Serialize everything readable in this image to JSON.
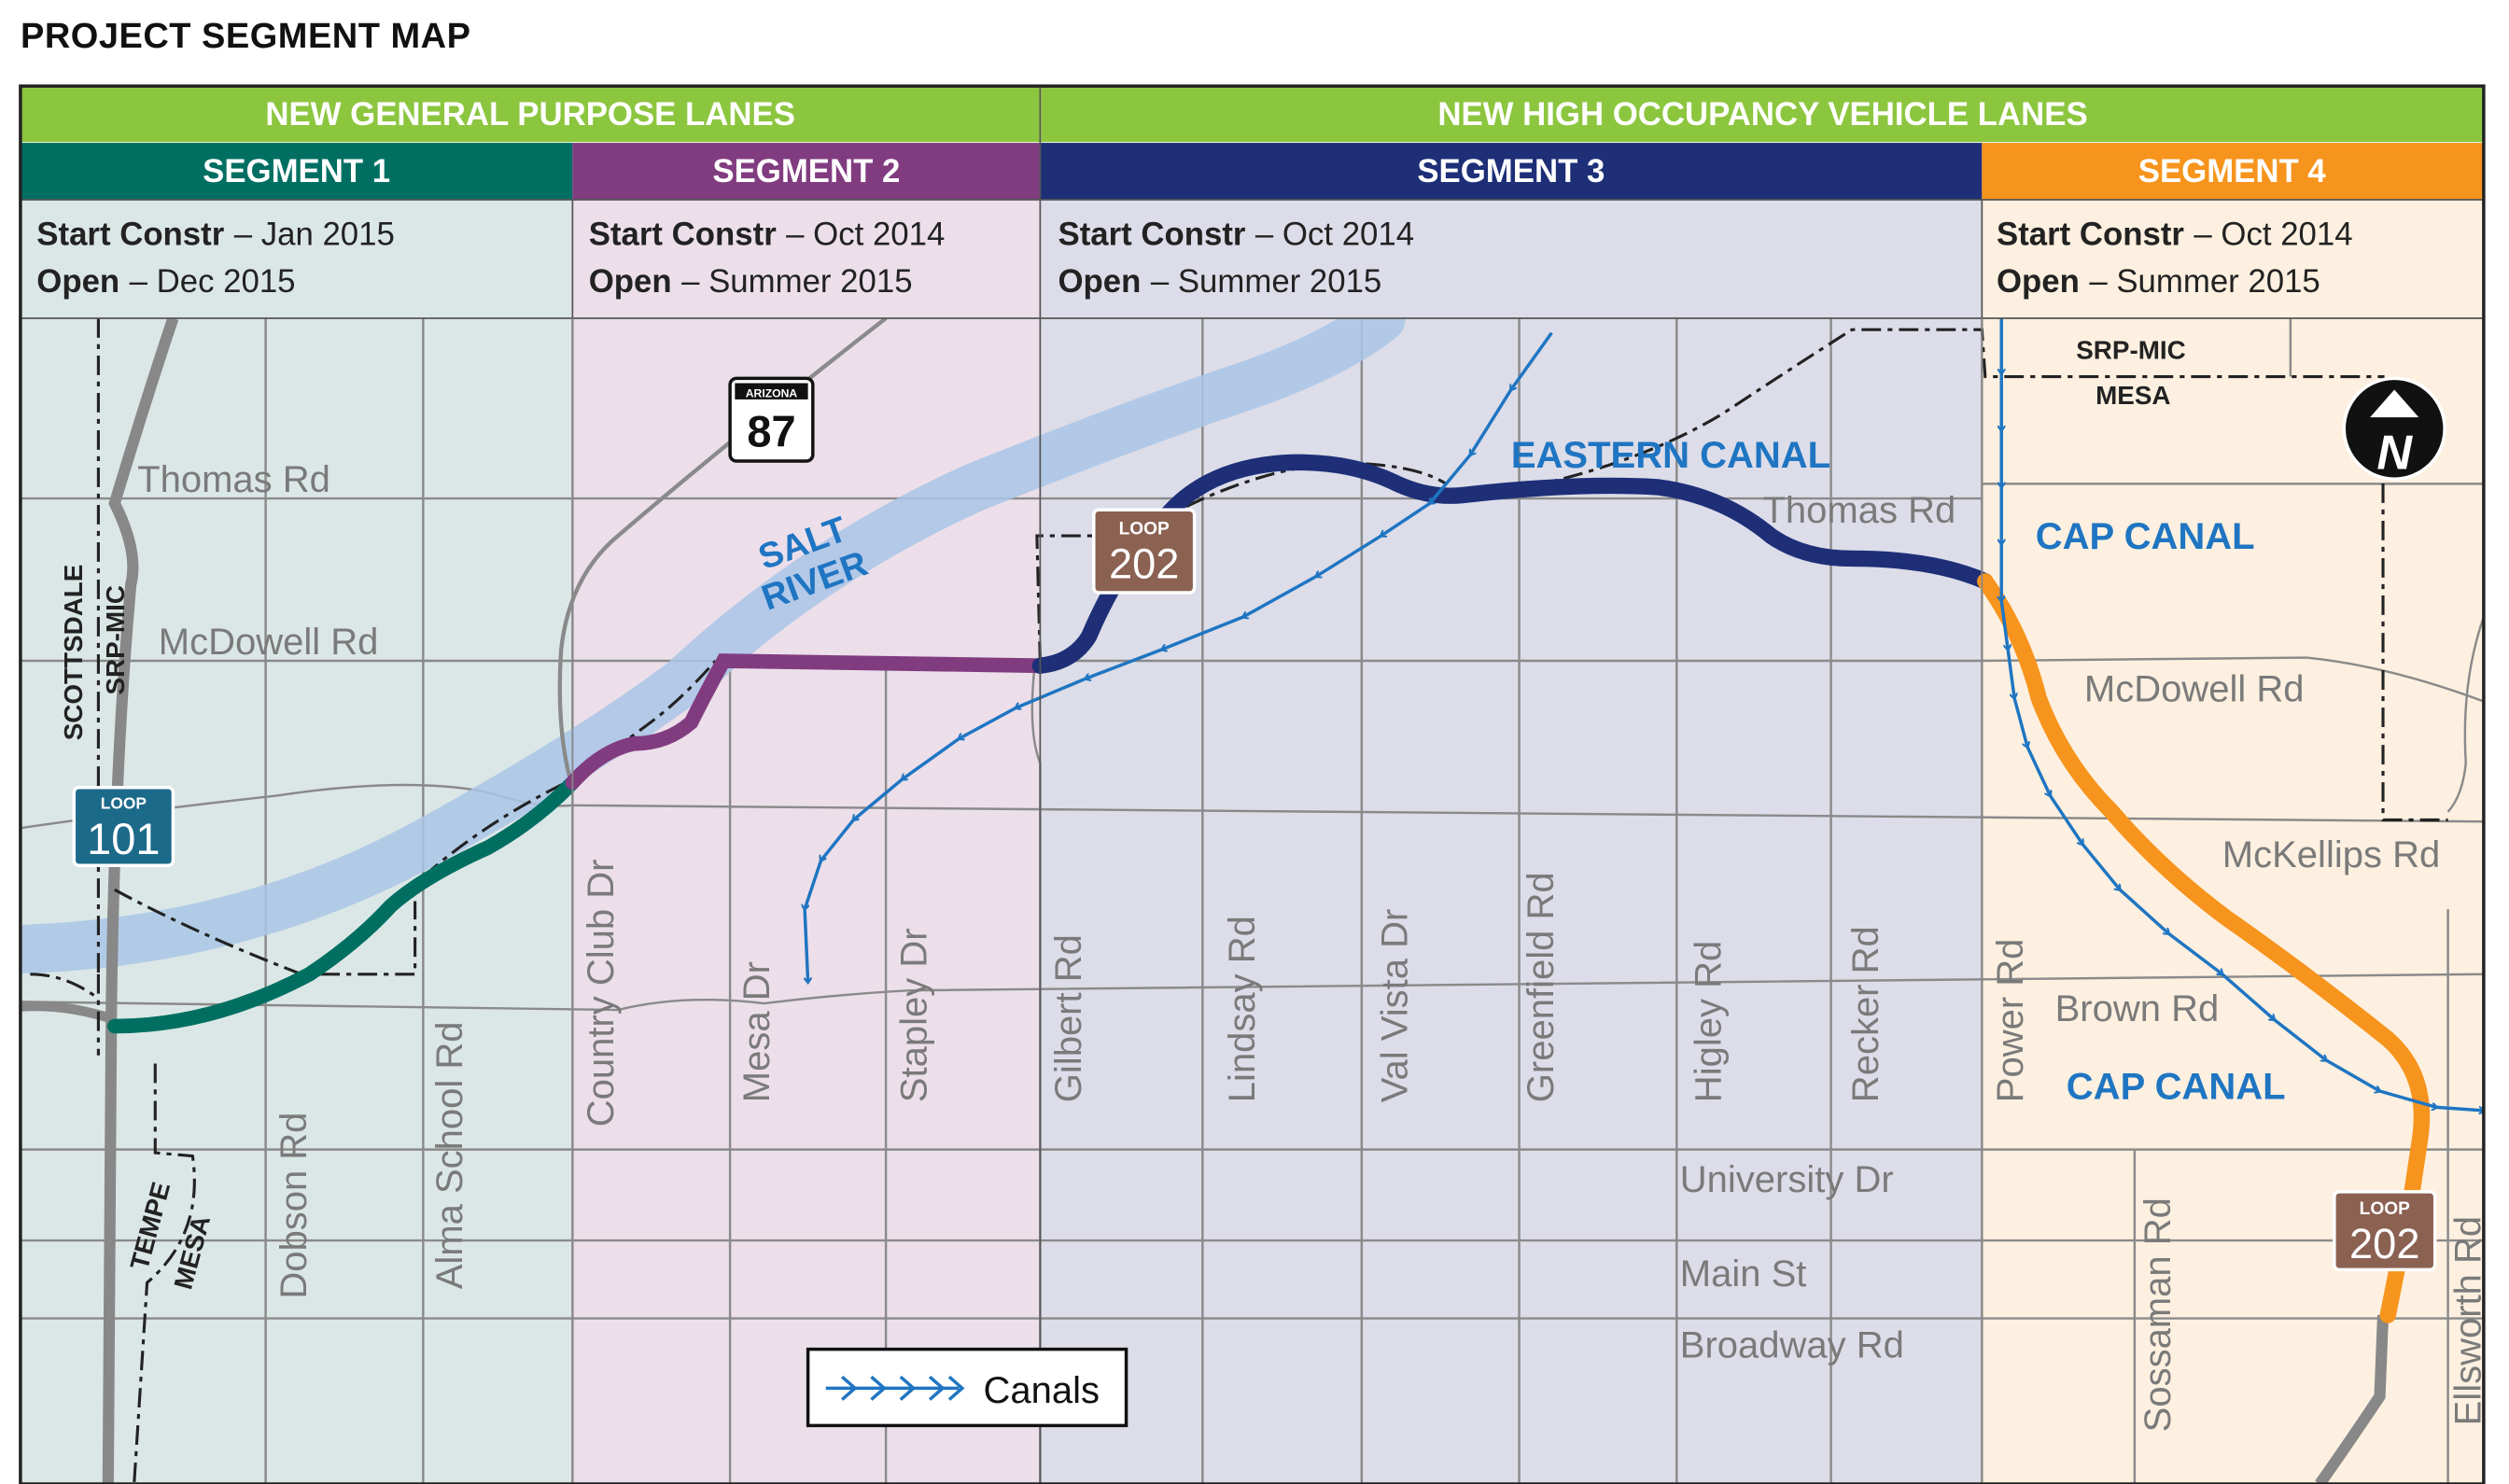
{
  "title": "PROJECT SEGMENT MAP",
  "header": {
    "group1": "NEW GENERAL PURPOSE LANES",
    "group2": "NEW HIGH OCCUPANCY VEHICLE LANES"
  },
  "segments": [
    {
      "name": "SEGMENT 1",
      "color": "#006f62",
      "bg": "#dbe7e6",
      "start_label": "Start Constr",
      "start": "– Jan 2015",
      "open_label": "Open",
      "open": "– Dec 2015"
    },
    {
      "name": "SEGMENT 2",
      "color": "#813c80",
      "bg": "#ecdfea",
      "start_label": "Start Constr",
      "start": "– Oct 2014",
      "open_label": "Open",
      "open": "– Summer 2015"
    },
    {
      "name": "SEGMENT 3",
      "color": "#1e2f78",
      "bg": "#dcdde9",
      "start_label": "Start Constr",
      "start": "– Oct 2014",
      "open_label": "Open",
      "open": "– Summer 2015"
    },
    {
      "name": "SEGMENT 4",
      "color": "#f7941d",
      "bg": "#fdf0e0",
      "start_label": "Start Constr",
      "start": "– Oct 2014",
      "open_label": "Open",
      "open": "– Summer 2015"
    }
  ],
  "colors": {
    "header_green": "#8cc63f",
    "canal_blue": "#1f75c2",
    "river": "#a9c6e6",
    "road_gray": "#8a8a8a",
    "freeway_gray": "#888888",
    "loop202_brown": "#8b6152",
    "loop101_teal": "#1c6a8a"
  },
  "roads": {
    "thomas": "Thomas Rd",
    "thomas_east": "Thomas Rd",
    "mcdowell": "McDowell Rd",
    "mcdowell_east": "McDowell Rd",
    "mckellips": "McKellips Rd",
    "brown": "Brown Rd",
    "university": "University Dr",
    "main": "Main St",
    "broadway": "Broadway Rd",
    "dobson": "Dobson Rd",
    "alma": "Alma School Rd",
    "country_club": "Country Club Dr",
    "mesa": "Mesa Dr",
    "stapley": "Stapley Dr",
    "gilbert": "Gilbert Rd",
    "lindsay": "Lindsay Rd",
    "val_vista": "Val Vista Dr",
    "greenfield": "Greenfield Rd",
    "higley": "Higley Rd",
    "recker": "Recker Rd",
    "power": "Power Rd",
    "sossaman": "Sossaman Rd",
    "ellsworth": "Ellsworth Rd"
  },
  "labels": {
    "salt_river_1": "SALT",
    "salt_river_2": "RIVER",
    "eastern_canal": "EASTERN CANAL",
    "cap_canal_1": "CAP CANAL",
    "cap_canal_2": "CAP CANAL",
    "scottsdale": "SCOTTSDALE",
    "srp_mic_west": "SRP-MIC",
    "tempe": "TEMPE",
    "mesa_sw": "MESA",
    "srp_mic_east": "SRP-MIC",
    "mesa_east": "MESA"
  },
  "shields": {
    "sr87_top": "ARIZONA",
    "sr87_num": "87",
    "loop_word_1": "LOOP",
    "loop202_num_1": "202",
    "loop_word_2": "LOOP",
    "loop101_num": "101",
    "loop_word_3": "LOOP",
    "loop202_num_2": "202"
  },
  "north_arrow": "N",
  "legend": {
    "label": "Canals"
  }
}
